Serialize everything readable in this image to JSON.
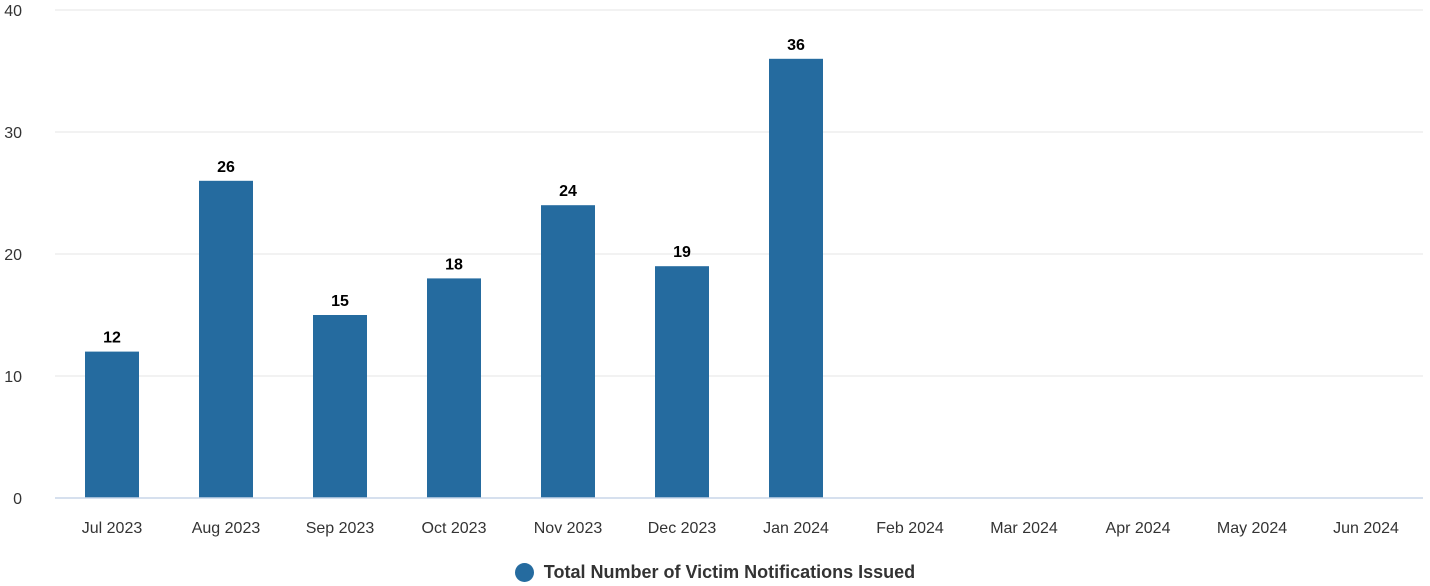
{
  "chart_data": {
    "type": "bar",
    "title": "",
    "xlabel": "",
    "ylabel": "",
    "categories": [
      "Jul 2023",
      "Aug 2023",
      "Sep 2023",
      "Oct 2023",
      "Nov 2023",
      "Dec 2023",
      "Jan 2024",
      "Feb 2024",
      "Mar 2024",
      "Apr 2024",
      "May 2024",
      "Jun 2024"
    ],
    "series": [
      {
        "name": "Total Number of Victim Notifications Issued",
        "values": [
          12,
          26,
          15,
          18,
          24,
          19,
          36,
          null,
          null,
          null,
          null,
          null
        ],
        "color": "#256b9f"
      }
    ],
    "ylim": [
      0,
      40
    ],
    "yticks": [
      0,
      10,
      20,
      30,
      40
    ],
    "grid": true,
    "data_labels": true,
    "legend_position": "bottom-center"
  },
  "colors": {
    "bar": "#256b9f",
    "grid": "#e6e6e6",
    "baseline": "#c8d6e8",
    "tick_text": "#333333",
    "data_label_text": "#000000"
  }
}
